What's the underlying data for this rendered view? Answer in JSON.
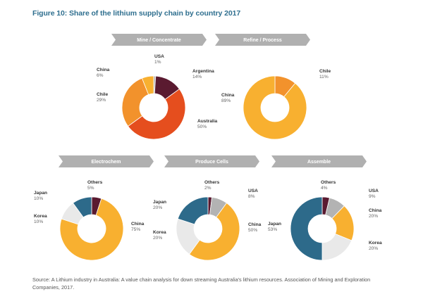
{
  "title": "Figure 10: Share of the lithium supply chain by country 2017",
  "source": "Source: A Lithium industry in Australia: A value chain analysis for down streaming Australia's lithium resources. Association of Mining and Exploration Companies, 2017.",
  "colors": {
    "Argentina": "#5a1a30",
    "Australia": "#e54e1e",
    "Chile": "#f2922c",
    "China": "#f8b030",
    "USA": "#b3b3b3",
    "Japan": "#2d6a8a",
    "Korea": "#e9e9e9",
    "Others": "#5a1a30",
    "banner": "#b0b0b0"
  },
  "chart_data": [
    {
      "type": "pie",
      "stage": "Mine / Concentrate",
      "labels": [
        "USA",
        "Argentina",
        "Australia",
        "Chile",
        "China"
      ],
      "values": [
        1,
        14,
        50,
        29,
        6
      ],
      "value_labels": [
        "1%",
        "14%",
        "50%",
        "29%",
        "6%"
      ]
    },
    {
      "type": "pie",
      "stage": "Refine / Process",
      "labels": [
        "Chile",
        "China"
      ],
      "values": [
        11,
        89
      ],
      "value_labels": [
        "11%",
        "89%"
      ]
    },
    {
      "type": "pie",
      "stage": "Electrochem",
      "labels": [
        "Others",
        "China",
        "Korea",
        "Japan"
      ],
      "values": [
        5,
        75,
        10,
        10
      ],
      "value_labels": [
        "5%",
        "75%",
        "10%",
        "10%"
      ]
    },
    {
      "type": "pie",
      "stage": "Produce Cells",
      "labels": [
        "Others",
        "USA",
        "China",
        "Korea",
        "Japan"
      ],
      "values": [
        2,
        8,
        50,
        20,
        20
      ],
      "value_labels": [
        "2%",
        "8%",
        "50%",
        "20%",
        "20%"
      ]
    },
    {
      "type": "pie",
      "stage": "Assemble",
      "labels": [
        "Others",
        "USA",
        "China",
        "Korea",
        "Japan"
      ],
      "values": [
        4,
        9,
        20,
        20,
        53
      ],
      "value_labels": [
        "4%",
        "9%",
        "20%",
        "20%",
        "53%"
      ]
    }
  ]
}
